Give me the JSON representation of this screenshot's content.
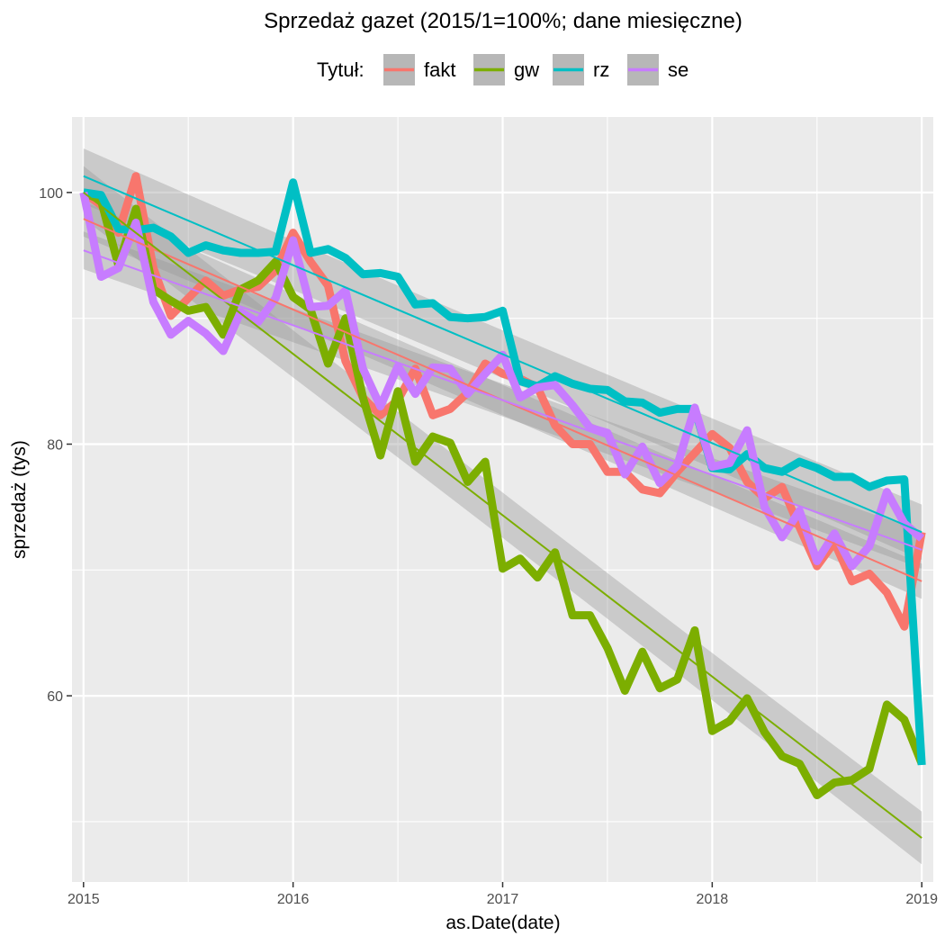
{
  "chart_data": {
    "type": "line",
    "title": "Sprzedaż gazet (2015/1=100%; dane miesięczne)",
    "xlabel": "as.Date(date)",
    "ylabel": "sprzedaż (tys)",
    "legend_title": "Tytuł:",
    "legend_position": "top",
    "grid": true,
    "xlim": [
      2014.945,
      2019.055
    ],
    "ylim": [
      45.2,
      106.0
    ],
    "x_ticks": [
      "2015",
      "2016",
      "2017",
      "2018",
      "2019"
    ],
    "y_ticks": [
      60,
      80,
      100
    ],
    "x_monthly_start": 2015.0,
    "series": [
      {
        "name": "fakt",
        "color": "#F8766D",
        "values": [
          100.0,
          99.0,
          96.8,
          101.3,
          94.0,
          90.2,
          91.6,
          93.0,
          91.8,
          92.3,
          92.5,
          93.8,
          96.8,
          94.5,
          92.6,
          86.6,
          83.7,
          82.3,
          83.5,
          86.0,
          82.3,
          82.8,
          84.1,
          86.4,
          85.6,
          85.2,
          84.5,
          81.5,
          80.0,
          80.0,
          77.8,
          77.8,
          76.4,
          76.1,
          77.8,
          79.3,
          80.8,
          79.7,
          77.0,
          75.7,
          76.6,
          73.4,
          70.3,
          72.2,
          69.1,
          69.7,
          68.2,
          65.5,
          73.0
        ],
        "trend": [
          97.9,
          69.1
        ],
        "band": [
          1.2,
          1.4
        ]
      },
      {
        "name": "gw",
        "color": "#7CAE00",
        "values": [
          100.0,
          99.4,
          94.2,
          98.7,
          92.3,
          91.4,
          90.6,
          90.9,
          88.7,
          92.3,
          93.0,
          94.5,
          91.7,
          90.7,
          86.4,
          90.0,
          83.7,
          79.1,
          84.2,
          78.6,
          80.6,
          80.1,
          77.0,
          78.6,
          70.1,
          70.9,
          69.4,
          71.4,
          66.4,
          66.4,
          63.8,
          60.4,
          63.5,
          60.6,
          61.3,
          65.2,
          57.2,
          58.0,
          59.8,
          57.1,
          55.2,
          54.6,
          52.1,
          53.1,
          53.3,
          54.2,
          59.3,
          58.1,
          54.6
        ],
        "trend": [
          100.0,
          48.7
        ],
        "band": [
          1.8,
          2.1
        ]
      },
      {
        "name": "rz",
        "color": "#00BFC4",
        "values": [
          100.0,
          99.8,
          97.1,
          97.0,
          97.2,
          96.5,
          95.2,
          95.8,
          95.4,
          95.2,
          95.2,
          95.3,
          100.8,
          95.2,
          95.5,
          94.8,
          93.5,
          93.6,
          93.3,
          91.1,
          91.2,
          90.1,
          90.0,
          90.1,
          90.6,
          85.0,
          84.6,
          85.4,
          84.8,
          84.4,
          84.3,
          83.4,
          83.3,
          82.5,
          82.8,
          82.8,
          78.1,
          78.0,
          79.2,
          78.1,
          77.8,
          78.6,
          78.1,
          77.4,
          77.4,
          76.6,
          77.1,
          77.2,
          54.5
        ],
        "trend": [
          101.3,
          73.0
        ],
        "band": [
          1.9,
          2.2
        ]
      },
      {
        "name": "se",
        "color": "#C77CFF",
        "values": [
          100.0,
          93.3,
          94.0,
          97.6,
          91.3,
          88.7,
          89.8,
          88.8,
          87.4,
          90.5,
          89.7,
          91.6,
          96.2,
          90.9,
          91.0,
          92.2,
          86.0,
          83.0,
          86.2,
          84.0,
          86.1,
          86.0,
          84.0,
          85.6,
          87.1,
          83.7,
          84.5,
          84.7,
          83.1,
          81.3,
          80.9,
          77.6,
          79.8,
          76.9,
          78.3,
          82.9,
          78.2,
          78.5,
          81.1,
          75.0,
          72.6,
          74.7,
          70.7,
          72.9,
          70.3,
          71.9,
          76.2,
          73.7,
          72.5
        ],
        "trend": [
          95.4,
          71.6
        ],
        "band": [
          1.3,
          1.5
        ]
      }
    ]
  }
}
